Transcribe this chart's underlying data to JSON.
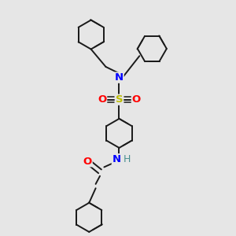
{
  "background_color": "#e6e6e6",
  "bond_color": "#1a1a1a",
  "N_color": "#0000ff",
  "S_color": "#bbbb00",
  "O_color": "#ff0000",
  "H_color": "#4a9090",
  "lw": 1.4,
  "figsize": [
    3.0,
    3.0
  ],
  "dpi": 100,
  "xlim": [
    0,
    10
  ],
  "ylim": [
    0,
    10
  ],
  "ring_r": 0.62,
  "fs": 9.5
}
